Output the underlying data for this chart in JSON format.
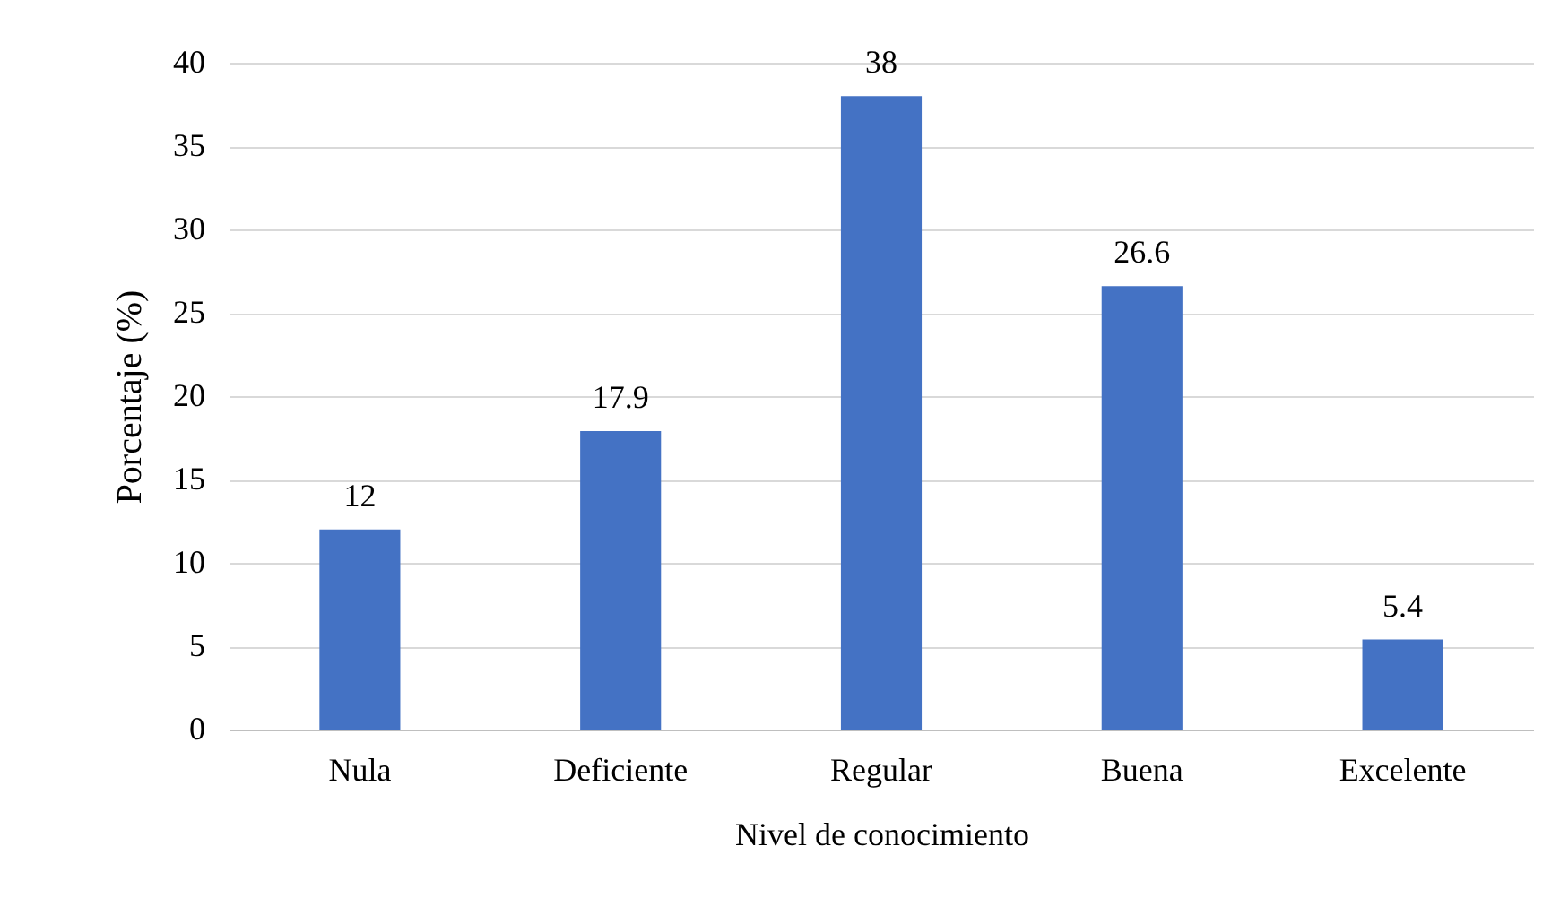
{
  "chart_data": {
    "type": "bar",
    "xlabel": "Nivel de conocimiento",
    "ylabel": "Porcentaje (%)",
    "categories": [
      "Nula",
      "Deficiente",
      "Regular",
      "Buena",
      "Excelente"
    ],
    "values": [
      12,
      17.9,
      38,
      26.6,
      5.4
    ],
    "color": "#4472c4",
    "ylim": [
      0,
      40
    ],
    "yticks": [
      0,
      5,
      10,
      15,
      20,
      25,
      30,
      35,
      40
    ],
    "grid": "y",
    "data_labels": true
  }
}
